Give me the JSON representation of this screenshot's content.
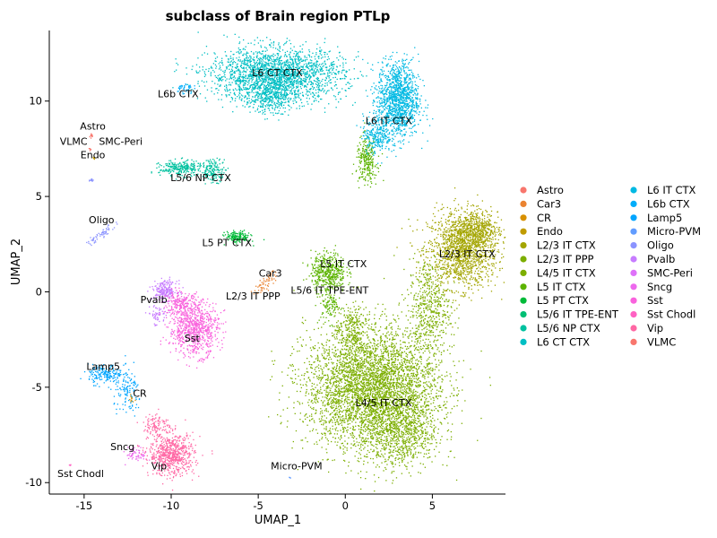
{
  "chart_data": {
    "type": "scatter",
    "title": "subclass of Brain region PTLp",
    "xlabel": "UMAP_1",
    "ylabel": "UMAP_2",
    "xlim": [
      -17,
      9.2
    ],
    "ylim": [
      -10.6,
      13.7
    ],
    "xticks": [
      -15,
      -10,
      -5,
      0,
      5
    ],
    "yticks": [
      -10,
      -5,
      0,
      5,
      10
    ],
    "legend_position": "right",
    "legend_columns": 2,
    "series": [
      {
        "name": "Astro",
        "color": "#F8766D",
        "clusters": [
          {
            "x": -14.6,
            "y": 8.2,
            "sx": 0.05,
            "sy": 0.08,
            "n": 12
          }
        ],
        "label": {
          "text": "Astro",
          "x": -14.5,
          "y": 8.5
        }
      },
      {
        "name": "Car3",
        "color": "#EA8331",
        "clusters": [
          {
            "x": -4.6,
            "y": 0.5,
            "sx": 0.15,
            "sy": 0.15,
            "n": 60,
            "rot": 0.7,
            "elong": 3
          }
        ],
        "label": {
          "text": "Car3",
          "x": -4.3,
          "y": 0.8
        }
      },
      {
        "name": "CR",
        "color": "#D89000",
        "clusters": [
          {
            "x": -12.3,
            "y": -5.6,
            "sx": 0.1,
            "sy": 0.1,
            "n": 12
          }
        ],
        "label": {
          "text": "CR",
          "x": -11.8,
          "y": -5.5
        }
      },
      {
        "name": "Endo",
        "color": "#C09B00",
        "clusters": [
          {
            "x": -14.5,
            "y": 7.0,
            "sx": 0.05,
            "sy": 0.05,
            "n": 6
          }
        ],
        "label": {
          "text": "Endo",
          "x": -14.5,
          "y": 7.0
        }
      },
      {
        "name": "L2/3 IT CTX",
        "color": "#A3A500",
        "clusters": [
          {
            "x": 6.7,
            "y": 2.2,
            "sx": 1.0,
            "sy": 1.0,
            "n": 1500
          },
          {
            "x": 7.5,
            "y": 3.3,
            "sx": 0.6,
            "sy": 0.5,
            "n": 400
          }
        ],
        "label": {
          "text": "L2/3 IT CTX",
          "x": 7.0,
          "y": 1.8
        }
      },
      {
        "name": "L2/3 IT PPP",
        "color": "#7CAE00",
        "clusters": [],
        "label": {
          "text": "L2/3 IT PPP",
          "x": -5.3,
          "y": -0.4
        }
      },
      {
        "name": "L4/5 IT CTX",
        "color": "#7CAE00",
        "clusters": [
          {
            "x": 1.5,
            "y": -5.0,
            "sx": 1.9,
            "sy": 1.6,
            "n": 4200
          },
          {
            "x": 3.2,
            "y": -7.3,
            "sx": 1.0,
            "sy": 1.0,
            "n": 700
          },
          {
            "x": 4.8,
            "y": -0.8,
            "sx": 0.6,
            "sy": 1.3,
            "n": 500
          },
          {
            "x": 0.3,
            "y": -1.9,
            "sx": 0.4,
            "sy": 0.6,
            "n": 200
          }
        ],
        "label": {
          "text": "L4/5 IT CTX",
          "x": 2.2,
          "y": -6.0
        }
      },
      {
        "name": "L5 IT CTX",
        "color": "#5BB300",
        "clusters": [
          {
            "x": -1.0,
            "y": 1.1,
            "sx": 0.5,
            "sy": 0.5,
            "n": 450
          },
          {
            "x": 1.2,
            "y": 6.9,
            "sx": 0.3,
            "sy": 0.6,
            "n": 250
          },
          {
            "x": -0.9,
            "y": -0.6,
            "sx": 0.3,
            "sy": 0.5,
            "n": 120
          }
        ],
        "label": {
          "text": "L5 IT CTX",
          "x": -0.1,
          "y": 1.3
        }
      },
      {
        "name": "L5 PT CTX",
        "color": "#00BA38",
        "clusters": [
          {
            "x": -6.2,
            "y": 2.9,
            "sx": 0.35,
            "sy": 0.15,
            "n": 160
          }
        ],
        "label": {
          "text": "L5 PT CTX",
          "x": -6.8,
          "y": 2.4
        }
      },
      {
        "name": "L5/6 IT TPE-ENT",
        "color": "#00BF74",
        "clusters": [],
        "label": {
          "text": "L5/6 IT TPE-ENT",
          "x": -0.9,
          "y": -0.1
        }
      },
      {
        "name": "L5/6 NP CTX",
        "color": "#00C19F",
        "clusters": [
          {
            "x": -9.5,
            "y": 6.5,
            "sx": 0.6,
            "sy": 0.2,
            "n": 260
          },
          {
            "x": -7.6,
            "y": 6.4,
            "sx": 0.35,
            "sy": 0.3,
            "n": 160
          }
        ],
        "label": {
          "text": "L5/6 NP CTX",
          "x": -8.3,
          "y": 5.8
        }
      },
      {
        "name": "L6 CT CTX",
        "color": "#00BFC4",
        "clusters": [
          {
            "x": -4.0,
            "y": 11.4,
            "sx": 1.9,
            "sy": 0.7,
            "n": 2200
          },
          {
            "x": -4.4,
            "y": 10.2,
            "sx": 0.7,
            "sy": 0.4,
            "n": 300
          }
        ],
        "label": {
          "text": "L6 CT CTX",
          "x": -3.9,
          "y": 11.3
        }
      },
      {
        "name": "L6 IT CTX",
        "color": "#00B9E3",
        "clusters": [
          {
            "x": 3.0,
            "y": 10.1,
            "sx": 0.6,
            "sy": 1.0,
            "n": 1300
          },
          {
            "x": 1.8,
            "y": 8.3,
            "sx": 0.4,
            "sy": 0.5,
            "n": 250
          }
        ],
        "label": {
          "text": "L6 IT CTX",
          "x": 2.5,
          "y": 8.8
        }
      },
      {
        "name": "L6b CTX",
        "color": "#00ADFA",
        "clusters": [
          {
            "x": -9.3,
            "y": 10.7,
            "sx": 0.25,
            "sy": 0.15,
            "n": 40
          }
        ],
        "label": {
          "text": "L6b CTX",
          "x": -9.6,
          "y": 10.2
        }
      },
      {
        "name": "Lamp5",
        "color": "#00A5FF",
        "clusters": [
          {
            "x": -13.8,
            "y": -4.3,
            "sx": 0.5,
            "sy": 0.25,
            "n": 180
          },
          {
            "x": -12.5,
            "y": -5.3,
            "sx": 0.4,
            "sy": 0.6,
            "n": 120
          }
        ],
        "label": {
          "text": "Lamp5",
          "x": -13.9,
          "y": -4.1
        }
      },
      {
        "name": "Micro-PVM",
        "color": "#619CFF",
        "clusters": [
          {
            "x": -3.2,
            "y": -9.7,
            "sx": 0.04,
            "sy": 0.04,
            "n": 3
          }
        ],
        "label": {
          "text": "Micro-PVM",
          "x": -2.8,
          "y": -9.3
        }
      },
      {
        "name": "Oligo",
        "color": "#8B93FF",
        "clusters": [
          {
            "x": -14.1,
            "y": 3.0,
            "sx": 0.25,
            "sy": 0.1,
            "n": 60,
            "rot": 0.6,
            "elong": 2
          },
          {
            "x": -14.6,
            "y": 5.9,
            "sx": 0.05,
            "sy": 0.05,
            "n": 12
          }
        ],
        "label": {
          "text": "Oligo",
          "x": -14.0,
          "y": 3.6
        }
      },
      {
        "name": "Pvalb",
        "color": "#C77CFF",
        "clusters": [
          {
            "x": -10.4,
            "y": 0.1,
            "sx": 0.35,
            "sy": 0.25,
            "n": 220
          },
          {
            "x": -10.8,
            "y": -1.2,
            "sx": 0.3,
            "sy": 0.3,
            "n": 60
          }
        ],
        "label": {
          "text": "Pvalb",
          "x": -11.0,
          "y": -0.6
        }
      },
      {
        "name": "SMC-Peri",
        "color": "#DE71F9",
        "clusters": [],
        "label": {
          "text": "SMC-Peri",
          "x": -12.9,
          "y": 7.7
        }
      },
      {
        "name": "Sncg",
        "color": "#ED68ED",
        "clusters": [
          {
            "x": -12.0,
            "y": -8.5,
            "sx": 0.3,
            "sy": 0.2,
            "n": 60
          }
        ],
        "label": {
          "text": "Sncg",
          "x": -12.8,
          "y": -8.3
        }
      },
      {
        "name": "Sst",
        "color": "#F962DD",
        "clusters": [
          {
            "x": -8.7,
            "y": -1.9,
            "sx": 0.7,
            "sy": 0.7,
            "n": 800
          },
          {
            "x": -9.5,
            "y": -0.6,
            "sx": 0.5,
            "sy": 0.3,
            "n": 200
          }
        ],
        "label": {
          "text": "Sst",
          "x": -8.8,
          "y": -2.6
        }
      },
      {
        "name": "Sst Chodl",
        "color": "#FF61C3",
        "clusters": [
          {
            "x": -15.8,
            "y": -9.1,
            "sx": 0.04,
            "sy": 0.06,
            "n": 5
          }
        ],
        "label": {
          "text": "Sst Chodl",
          "x": -15.2,
          "y": -9.7
        }
      },
      {
        "name": "Vip",
        "color": "#FF67A4",
        "clusters": [
          {
            "x": -10.0,
            "y": -8.5,
            "sx": 0.65,
            "sy": 0.55,
            "n": 700
          },
          {
            "x": -10.9,
            "y": -6.9,
            "sx": 0.35,
            "sy": 0.3,
            "n": 100
          }
        ],
        "label": {
          "text": "Vip",
          "x": -10.7,
          "y": -9.3
        }
      },
      {
        "name": "VLMC",
        "color": "#F8766D",
        "clusters": [
          {
            "x": -14.7,
            "y": 7.5,
            "sx": 0.05,
            "sy": 0.05,
            "n": 6
          }
        ],
        "label": {
          "text": "VLMC",
          "x": -15.6,
          "y": 7.7
        }
      }
    ]
  }
}
